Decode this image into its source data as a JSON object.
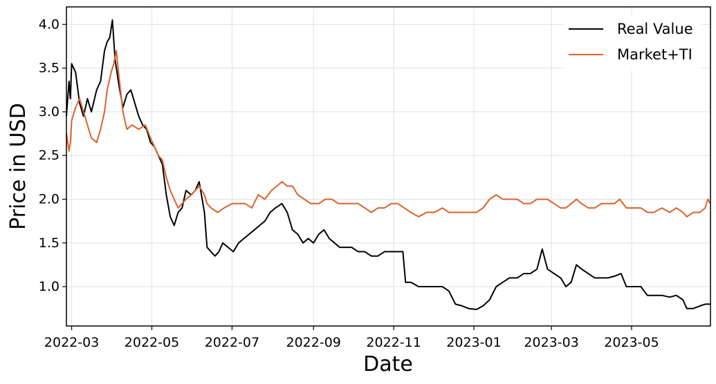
{
  "chart_data": {
    "type": "line",
    "title": "",
    "xlabel": "Date",
    "ylabel": "Price in USD",
    "xlim": [
      "2022-02-25",
      "2023-06-30"
    ],
    "ylim": [
      0.55,
      4.2
    ],
    "grid": true,
    "legend_position": "top-right",
    "x_ticks": [
      "2022-03",
      "2022-05",
      "2022-07",
      "2022-09",
      "2022-11",
      "2023-01",
      "2023-03",
      "2023-05"
    ],
    "y_ticks": [
      "1.0",
      "1.5",
      "2.0",
      "2.5",
      "3.0",
      "3.5",
      "4.0"
    ],
    "series": [
      {
        "name": "Real Value",
        "color": "#000000",
        "points": [
          [
            "2022-02-25",
            2.95
          ],
          [
            "2022-02-27",
            3.35
          ],
          [
            "2022-02-28",
            3.15
          ],
          [
            "2022-03-01",
            3.55
          ],
          [
            "2022-03-04",
            3.45
          ],
          [
            "2022-03-07",
            3.1
          ],
          [
            "2022-03-10",
            2.95
          ],
          [
            "2022-03-13",
            3.15
          ],
          [
            "2022-03-16",
            3.0
          ],
          [
            "2022-03-20",
            3.25
          ],
          [
            "2022-03-23",
            3.35
          ],
          [
            "2022-03-26",
            3.7
          ],
          [
            "2022-03-28",
            3.8
          ],
          [
            "2022-03-30",
            3.85
          ],
          [
            "2022-04-01",
            4.05
          ],
          [
            "2022-04-03",
            3.6
          ],
          [
            "2022-04-06",
            3.3
          ],
          [
            "2022-04-09",
            3.05
          ],
          [
            "2022-04-12",
            3.2
          ],
          [
            "2022-04-15",
            3.25
          ],
          [
            "2022-04-18",
            3.1
          ],
          [
            "2022-04-21",
            2.95
          ],
          [
            "2022-04-24",
            2.85
          ],
          [
            "2022-04-27",
            2.8
          ],
          [
            "2022-04-30",
            2.65
          ],
          [
            "2022-05-03",
            2.6
          ],
          [
            "2022-05-06",
            2.5
          ],
          [
            "2022-05-09",
            2.4
          ],
          [
            "2022-05-12",
            2.05
          ],
          [
            "2022-05-15",
            1.8
          ],
          [
            "2022-05-18",
            1.7
          ],
          [
            "2022-05-21",
            1.85
          ],
          [
            "2022-05-24",
            1.9
          ],
          [
            "2022-05-27",
            2.1
          ],
          [
            "2022-05-31",
            2.05
          ],
          [
            "2022-06-03",
            2.1
          ],
          [
            "2022-06-06",
            2.2
          ],
          [
            "2022-06-10",
            1.85
          ],
          [
            "2022-06-12",
            1.45
          ],
          [
            "2022-06-15",
            1.4
          ],
          [
            "2022-06-18",
            1.35
          ],
          [
            "2022-06-21",
            1.4
          ],
          [
            "2022-06-24",
            1.5
          ],
          [
            "2022-06-28",
            1.45
          ],
          [
            "2022-07-02",
            1.4
          ],
          [
            "2022-07-06",
            1.5
          ],
          [
            "2022-07-10",
            1.55
          ],
          [
            "2022-07-14",
            1.6
          ],
          [
            "2022-07-18",
            1.65
          ],
          [
            "2022-07-22",
            1.7
          ],
          [
            "2022-07-26",
            1.75
          ],
          [
            "2022-07-30",
            1.85
          ],
          [
            "2022-08-03",
            1.9
          ],
          [
            "2022-08-08",
            1.95
          ],
          [
            "2022-08-12",
            1.85
          ],
          [
            "2022-08-16",
            1.65
          ],
          [
            "2022-08-20",
            1.6
          ],
          [
            "2022-08-24",
            1.5
          ],
          [
            "2022-08-28",
            1.55
          ],
          [
            "2022-09-01",
            1.5
          ],
          [
            "2022-09-05",
            1.6
          ],
          [
            "2022-09-09",
            1.65
          ],
          [
            "2022-09-13",
            1.55
          ],
          [
            "2022-09-17",
            1.5
          ],
          [
            "2022-09-21",
            1.45
          ],
          [
            "2022-09-25",
            1.45
          ],
          [
            "2022-09-30",
            1.45
          ],
          [
            "2022-10-05",
            1.4
          ],
          [
            "2022-10-10",
            1.4
          ],
          [
            "2022-10-15",
            1.35
          ],
          [
            "2022-10-20",
            1.35
          ],
          [
            "2022-10-25",
            1.4
          ],
          [
            "2022-10-30",
            1.4
          ],
          [
            "2022-11-04",
            1.4
          ],
          [
            "2022-11-08",
            1.4
          ],
          [
            "2022-11-10",
            1.05
          ],
          [
            "2022-11-14",
            1.05
          ],
          [
            "2022-11-20",
            1.0
          ],
          [
            "2022-11-26",
            1.0
          ],
          [
            "2022-12-02",
            1.0
          ],
          [
            "2022-12-08",
            1.0
          ],
          [
            "2022-12-13",
            0.95
          ],
          [
            "2022-12-18",
            0.8
          ],
          [
            "2022-12-23",
            0.78
          ],
          [
            "2022-12-28",
            0.75
          ],
          [
            "2023-01-03",
            0.74
          ],
          [
            "2023-01-08",
            0.78
          ],
          [
            "2023-01-13",
            0.85
          ],
          [
            "2023-01-18",
            1.0
          ],
          [
            "2023-01-23",
            1.05
          ],
          [
            "2023-01-28",
            1.1
          ],
          [
            "2023-02-03",
            1.1
          ],
          [
            "2023-02-08",
            1.15
          ],
          [
            "2023-02-13",
            1.15
          ],
          [
            "2023-02-18",
            1.2
          ],
          [
            "2023-02-22",
            1.43
          ],
          [
            "2023-02-26",
            1.2
          ],
          [
            "2023-03-03",
            1.15
          ],
          [
            "2023-03-08",
            1.1
          ],
          [
            "2023-03-12",
            1.0
          ],
          [
            "2023-03-16",
            1.05
          ],
          [
            "2023-03-20",
            1.25
          ],
          [
            "2023-03-24",
            1.2
          ],
          [
            "2023-03-29",
            1.15
          ],
          [
            "2023-04-03",
            1.1
          ],
          [
            "2023-04-08",
            1.1
          ],
          [
            "2023-04-13",
            1.1
          ],
          [
            "2023-04-18",
            1.12
          ],
          [
            "2023-04-23",
            1.15
          ],
          [
            "2023-04-27",
            1.0
          ],
          [
            "2023-05-03",
            1.0
          ],
          [
            "2023-05-08",
            1.0
          ],
          [
            "2023-05-13",
            0.9
          ],
          [
            "2023-05-18",
            0.9
          ],
          [
            "2023-05-24",
            0.9
          ],
          [
            "2023-05-30",
            0.88
          ],
          [
            "2023-06-04",
            0.9
          ],
          [
            "2023-06-09",
            0.85
          ],
          [
            "2023-06-12",
            0.75
          ],
          [
            "2023-06-17",
            0.75
          ],
          [
            "2023-06-22",
            0.78
          ],
          [
            "2023-06-26",
            0.8
          ],
          [
            "2023-06-30",
            0.8
          ]
        ]
      },
      {
        "name": "Market+TI",
        "color": "#d9622b",
        "points": [
          [
            "2022-02-25",
            2.75
          ],
          [
            "2022-02-27",
            2.55
          ],
          [
            "2022-02-28",
            2.65
          ],
          [
            "2022-03-01",
            2.9
          ],
          [
            "2022-03-04",
            3.05
          ],
          [
            "2022-03-07",
            3.15
          ],
          [
            "2022-03-10",
            3.0
          ],
          [
            "2022-03-13",
            2.85
          ],
          [
            "2022-03-16",
            2.7
          ],
          [
            "2022-03-20",
            2.65
          ],
          [
            "2022-03-23",
            2.8
          ],
          [
            "2022-03-26",
            3.0
          ],
          [
            "2022-03-28",
            3.25
          ],
          [
            "2022-03-31",
            3.45
          ],
          [
            "2022-04-02",
            3.55
          ],
          [
            "2022-04-04",
            3.7
          ],
          [
            "2022-04-06",
            3.4
          ],
          [
            "2022-04-09",
            3.0
          ],
          [
            "2022-04-12",
            2.8
          ],
          [
            "2022-04-16",
            2.85
          ],
          [
            "2022-04-21",
            2.8
          ],
          [
            "2022-04-26",
            2.85
          ],
          [
            "2022-04-30",
            2.7
          ],
          [
            "2022-05-03",
            2.6
          ],
          [
            "2022-05-06",
            2.5
          ],
          [
            "2022-05-09",
            2.45
          ],
          [
            "2022-05-12",
            2.25
          ],
          [
            "2022-05-15",
            2.1
          ],
          [
            "2022-05-18",
            2.0
          ],
          [
            "2022-05-21",
            1.9
          ],
          [
            "2022-05-24",
            1.95
          ],
          [
            "2022-05-27",
            2.0
          ],
          [
            "2022-05-31",
            2.05
          ],
          [
            "2022-06-03",
            2.1
          ],
          [
            "2022-06-06",
            2.15
          ],
          [
            "2022-06-10",
            2.05
          ],
          [
            "2022-06-12",
            1.95
          ],
          [
            "2022-06-15",
            1.9
          ],
          [
            "2022-06-20",
            1.85
          ],
          [
            "2022-06-25",
            1.9
          ],
          [
            "2022-07-01",
            1.95
          ],
          [
            "2022-07-06",
            1.95
          ],
          [
            "2022-07-11",
            1.95
          ],
          [
            "2022-07-16",
            1.9
          ],
          [
            "2022-07-21",
            2.05
          ],
          [
            "2022-07-26",
            2.0
          ],
          [
            "2022-07-31",
            2.1
          ],
          [
            "2022-08-04",
            2.15
          ],
          [
            "2022-08-08",
            2.2
          ],
          [
            "2022-08-12",
            2.15
          ],
          [
            "2022-08-16",
            2.15
          ],
          [
            "2022-08-20",
            2.05
          ],
          [
            "2022-08-25",
            2.0
          ],
          [
            "2022-08-30",
            1.95
          ],
          [
            "2022-09-05",
            1.95
          ],
          [
            "2022-09-10",
            2.0
          ],
          [
            "2022-09-15",
            2.0
          ],
          [
            "2022-09-20",
            1.95
          ],
          [
            "2022-09-25",
            1.95
          ],
          [
            "2022-09-30",
            1.95
          ],
          [
            "2022-10-05",
            1.95
          ],
          [
            "2022-10-10",
            1.9
          ],
          [
            "2022-10-15",
            1.85
          ],
          [
            "2022-10-20",
            1.9
          ],
          [
            "2022-10-25",
            1.9
          ],
          [
            "2022-10-30",
            1.95
          ],
          [
            "2022-11-04",
            1.95
          ],
          [
            "2022-11-09",
            1.9
          ],
          [
            "2022-11-14",
            1.85
          ],
          [
            "2022-11-20",
            1.8
          ],
          [
            "2022-11-26",
            1.85
          ],
          [
            "2022-12-02",
            1.85
          ],
          [
            "2022-12-08",
            1.9
          ],
          [
            "2022-12-13",
            1.85
          ],
          [
            "2022-12-18",
            1.85
          ],
          [
            "2022-12-23",
            1.85
          ],
          [
            "2022-12-28",
            1.85
          ],
          [
            "2023-01-03",
            1.85
          ],
          [
            "2023-01-08",
            1.9
          ],
          [
            "2023-01-13",
            2.0
          ],
          [
            "2023-01-18",
            2.05
          ],
          [
            "2023-01-23",
            2.0
          ],
          [
            "2023-01-28",
            2.0
          ],
          [
            "2023-02-03",
            2.0
          ],
          [
            "2023-02-08",
            1.95
          ],
          [
            "2023-02-13",
            1.95
          ],
          [
            "2023-02-18",
            2.0
          ],
          [
            "2023-02-22",
            2.0
          ],
          [
            "2023-02-26",
            2.0
          ],
          [
            "2023-03-03",
            1.95
          ],
          [
            "2023-03-08",
            1.9
          ],
          [
            "2023-03-12",
            1.9
          ],
          [
            "2023-03-16",
            1.95
          ],
          [
            "2023-03-20",
            2.0
          ],
          [
            "2023-03-24",
            1.95
          ],
          [
            "2023-03-29",
            1.9
          ],
          [
            "2023-04-03",
            1.9
          ],
          [
            "2023-04-08",
            1.95
          ],
          [
            "2023-04-13",
            1.95
          ],
          [
            "2023-04-18",
            1.95
          ],
          [
            "2023-04-22",
            2.0
          ],
          [
            "2023-04-27",
            1.9
          ],
          [
            "2023-05-03",
            1.9
          ],
          [
            "2023-05-08",
            1.9
          ],
          [
            "2023-05-13",
            1.85
          ],
          [
            "2023-05-18",
            1.85
          ],
          [
            "2023-05-24",
            1.9
          ],
          [
            "2023-05-30",
            1.85
          ],
          [
            "2023-06-04",
            1.9
          ],
          [
            "2023-06-09",
            1.85
          ],
          [
            "2023-06-12",
            1.8
          ],
          [
            "2023-06-17",
            1.85
          ],
          [
            "2023-06-22",
            1.85
          ],
          [
            "2023-06-26",
            1.9
          ],
          [
            "2023-06-28",
            2.0
          ],
          [
            "2023-06-30",
            1.95
          ]
        ]
      }
    ]
  }
}
